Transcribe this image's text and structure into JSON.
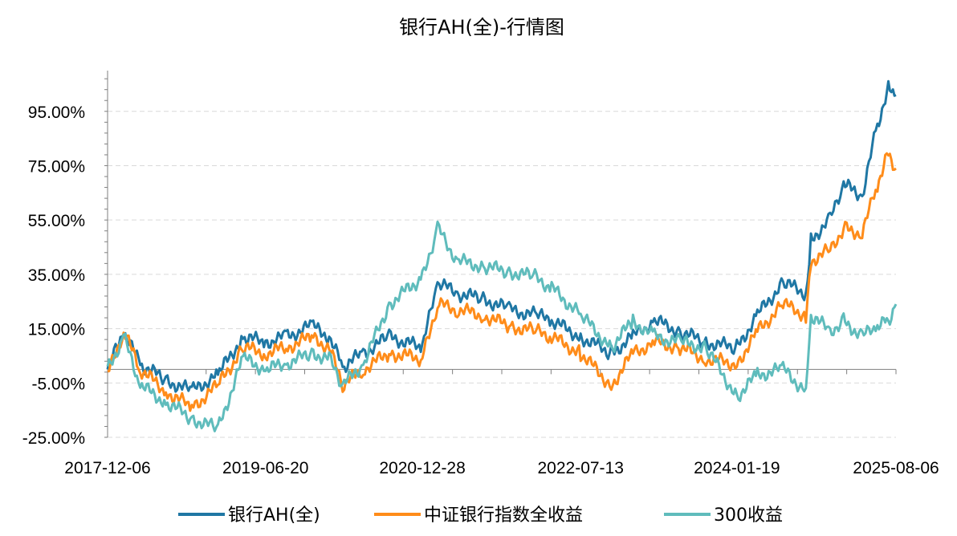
{
  "chart_data": {
    "type": "line",
    "title": "银行AH(全)-行情图",
    "xlabel": "",
    "ylabel": "",
    "x_tick_labels": [
      "2017-12-06",
      "2019-06-20",
      "2020-12-28",
      "2022-07-13",
      "2024-01-19",
      "2025-08-06"
    ],
    "x_range": [
      "2017-12-06",
      "2025-08-06"
    ],
    "y_tick_values": [
      -25,
      -5,
      15,
      35,
      55,
      75,
      95
    ],
    "y_tick_labels": [
      "-25.00%",
      "-5.00%",
      "15.00%",
      "35.00%",
      "55.00%",
      "75.00%",
      "95.00%"
    ],
    "ylim": [
      -25,
      110
    ],
    "grid": "horizontal dashed",
    "legend_position": "bottom",
    "series": [
      {
        "name": "银行AH(全)",
        "color": "#1f77a4",
        "x": [
          "2017-12-06",
          "2018-02-01",
          "2018-04-01",
          "2018-07-01",
          "2018-10-01",
          "2019-01-02",
          "2019-04-01",
          "2019-06-20",
          "2019-09-01",
          "2019-12-01",
          "2020-02-01",
          "2020-03-20",
          "2020-06-01",
          "2020-09-01",
          "2020-12-28",
          "2021-02-20",
          "2021-05-01",
          "2021-08-01",
          "2021-11-01",
          "2022-02-01",
          "2022-04-01",
          "2022-07-13",
          "2022-10-30",
          "2023-01-15",
          "2023-04-01",
          "2023-07-01",
          "2023-10-01",
          "2024-01-19",
          "2024-04-01",
          "2024-07-01",
          "2024-09-20",
          "2024-10-08",
          "2024-12-15",
          "2025-02-01",
          "2025-04-08",
          "2025-06-01",
          "2025-07-10",
          "2025-08-06"
        ],
        "values": [
          0,
          14,
          2,
          -4,
          -8,
          -2,
          12,
          10,
          12,
          16,
          12,
          1,
          6,
          12,
          8,
          32,
          28,
          26,
          22,
          20,
          18,
          12,
          6,
          12,
          18,
          14,
          10,
          8,
          20,
          32,
          28,
          48,
          55,
          68,
          64,
          90,
          104,
          101
        ]
      },
      {
        "name": "中证银行指数全收益",
        "color": "#ff8c1a",
        "x": [
          "2017-12-06",
          "2018-02-01",
          "2018-04-01",
          "2018-07-01",
          "2018-10-01",
          "2019-01-02",
          "2019-04-01",
          "2019-06-20",
          "2019-09-01",
          "2019-12-01",
          "2020-02-01",
          "2020-03-20",
          "2020-06-01",
          "2020-09-01",
          "2020-12-28",
          "2021-02-20",
          "2021-05-01",
          "2021-08-01",
          "2021-11-01",
          "2022-02-01",
          "2022-04-01",
          "2022-07-13",
          "2022-10-30",
          "2023-01-15",
          "2023-04-01",
          "2023-07-01",
          "2023-10-01",
          "2024-01-19",
          "2024-04-01",
          "2024-07-01",
          "2024-09-20",
          "2024-10-08",
          "2024-12-15",
          "2025-02-01",
          "2025-04-08",
          "2025-06-01",
          "2025-07-10",
          "2025-08-06"
        ],
        "values": [
          -2,
          14,
          0,
          -8,
          -14,
          -6,
          8,
          6,
          8,
          12,
          8,
          -6,
          0,
          6,
          4,
          24,
          22,
          20,
          16,
          14,
          12,
          6,
          -6,
          6,
          10,
          8,
          4,
          2,
          14,
          24,
          20,
          40,
          44,
          52,
          50,
          68,
          80,
          74
        ]
      },
      {
        "name": "300收益",
        "color": "#5fbcbc",
        "x": [
          "2017-12-06",
          "2018-02-01",
          "2018-04-01",
          "2018-07-01",
          "2018-10-01",
          "2019-01-02",
          "2019-04-01",
          "2019-06-20",
          "2019-09-01",
          "2019-12-01",
          "2020-02-01",
          "2020-03-20",
          "2020-06-01",
          "2020-09-01",
          "2020-12-28",
          "2021-02-20",
          "2021-05-01",
          "2021-08-01",
          "2021-11-01",
          "2022-02-01",
          "2022-04-01",
          "2022-07-13",
          "2022-10-30",
          "2023-01-15",
          "2023-04-01",
          "2023-07-01",
          "2023-10-01",
          "2024-01-19",
          "2024-04-01",
          "2024-07-01",
          "2024-09-20",
          "2024-10-08",
          "2024-12-15",
          "2025-02-01",
          "2025-04-08",
          "2025-06-01",
          "2025-07-10",
          "2025-08-06"
        ],
        "values": [
          0,
          12,
          -6,
          -12,
          -18,
          -22,
          4,
          0,
          2,
          6,
          4,
          -6,
          2,
          24,
          34,
          52,
          40,
          38,
          36,
          34,
          30,
          20,
          8,
          18,
          12,
          10,
          8,
          -10,
          -2,
          0,
          -8,
          20,
          14,
          18,
          12,
          16,
          18,
          24
        ]
      }
    ]
  }
}
